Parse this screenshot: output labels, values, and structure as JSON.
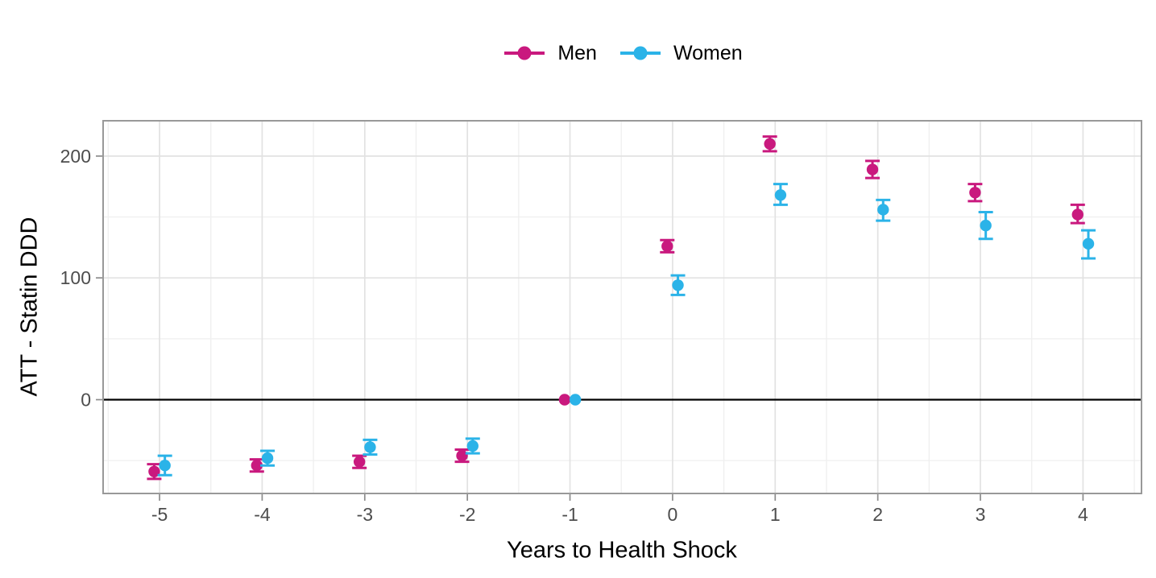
{
  "figure": {
    "background": "#ffffff",
    "panel_border_color": "#999999",
    "grid_major_color": "#e2e2e2",
    "grid_minor_color": "#efefef",
    "tick_mark_color": "#8c8c8c",
    "tick_label_color": "#4d4d4d",
    "axis_title_color": "#000000",
    "zero_line_color": "#000000"
  },
  "legend": {
    "position": "top-center",
    "items": [
      {
        "label": "Men",
        "color": "#C9197E",
        "key": "point-with-line-icon"
      },
      {
        "label": "Women",
        "color": "#2BB3E8",
        "key": "point-with-line-icon"
      }
    ]
  },
  "chart_data": {
    "type": "scatter",
    "subtype": "point-estimates-with-error-bars",
    "title": "",
    "xlabel": "Years to Health Shock",
    "ylabel": "ATT - Statin DDD",
    "x": [
      -5,
      -4,
      -3,
      -2,
      -1,
      0,
      1,
      2,
      3,
      4
    ],
    "xlim": [
      -5.55,
      4.57
    ],
    "ylim": [
      -77,
      229
    ],
    "x_ticks": [
      -5,
      -4,
      -3,
      -2,
      -1,
      0,
      1,
      2,
      3,
      4
    ],
    "y_ticks": [
      0,
      100,
      200
    ],
    "x_minor_gridlines": [
      -5.5,
      -4.5,
      -3.5,
      -2.5,
      -1.5,
      -0.5,
      0.5,
      1.5,
      2.5,
      3.5,
      4.5
    ],
    "y_minor_gridlines": [
      -50,
      50,
      150
    ],
    "reference_line_y": 0,
    "reference_period_x": -1,
    "dodge": 0.052,
    "grid": "on",
    "legend_position": "top",
    "series": [
      {
        "name": "Men",
        "color": "#C9197E",
        "values": [
          -59,
          -54,
          -51,
          -46,
          0,
          126,
          210,
          189,
          170,
          152
        ],
        "ci_low": [
          -65,
          -59,
          -56,
          -51,
          0,
          121,
          204,
          182,
          163,
          145
        ],
        "ci_high": [
          -53,
          -49,
          -46,
          -41,
          0,
          131,
          216,
          196,
          177,
          160
        ]
      },
      {
        "name": "Women",
        "color": "#2BB3E8",
        "values": [
          -54,
          -48,
          -39,
          -38,
          0,
          94,
          168,
          156,
          143,
          128
        ],
        "ci_low": [
          -62,
          -54,
          -45,
          -44,
          0,
          86,
          160,
          147,
          132,
          116
        ],
        "ci_high": [
          -46,
          -42,
          -33,
          -32,
          0,
          102,
          177,
          164,
          154,
          139
        ]
      }
    ]
  }
}
